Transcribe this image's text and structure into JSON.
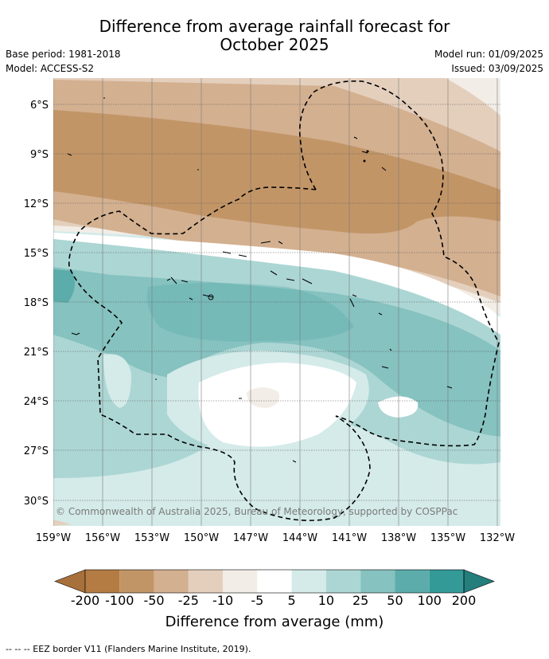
{
  "header": {
    "title_line1": "Difference from average rainfall forecast for",
    "title_line2": "October 2025",
    "base_period": "Base period: 1981-2018",
    "model": "Model: ACCESS-S2",
    "model_run": "Model run: 01/09/2025",
    "issued": "Issued: 03/09/2025"
  },
  "map": {
    "lat_labels": [
      "6°S",
      "9°S",
      "12°S",
      "15°S",
      "18°S",
      "21°S",
      "24°S",
      "27°S",
      "30°S"
    ],
    "lon_labels": [
      "159°W",
      "156°W",
      "153°W",
      "150°W",
      "147°W",
      "144°W",
      "141°W",
      "138°W",
      "135°W",
      "132°W"
    ],
    "copyright": "© Commonwealth of Australia 2025, Bureau of Meteorology, supported by COSPPac"
  },
  "colorbar": {
    "ticks": [
      "-200",
      "-100",
      "-50",
      "-25",
      "-10",
      "-5",
      "5",
      "10",
      "25",
      "50",
      "100",
      "200"
    ],
    "colors": [
      "#a8703a",
      "#b47c42",
      "#c29567",
      "#d3b090",
      "#e4cfbd",
      "#f2ede6",
      "#ffffff",
      "#d4ebe9",
      "#acd6d4",
      "#85c2c0",
      "#5bacaa",
      "#339a97",
      "#237e7c"
    ],
    "title": "Difference from average (mm)"
  },
  "footer": {
    "legend": "--  --  -- EEZ border V11 (Flanders Marine Institute, 2019)."
  }
}
